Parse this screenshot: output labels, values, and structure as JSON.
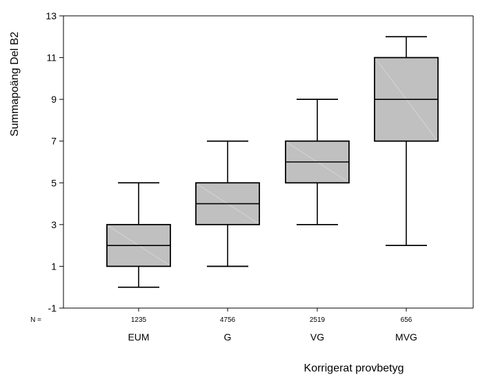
{
  "chart_data": {
    "type": "box",
    "title": "",
    "xlabel": "Korrigerat provbetyg",
    "ylabel": "Summapoäng Del B2",
    "ylim": [
      -1,
      13
    ],
    "yticks": [
      -1,
      1,
      3,
      5,
      7,
      9,
      11,
      13
    ],
    "grid": false,
    "n_prefix": "N =",
    "categories": [
      "EUM",
      "G",
      "VG",
      "MVG"
    ],
    "n": [
      "1235",
      "4756",
      "2519",
      "656"
    ],
    "box_fill": "#c0c0c0",
    "boxes": [
      {
        "category": "EUM",
        "min": 0,
        "q1": 1,
        "median": 2,
        "q3": 3,
        "max": 5
      },
      {
        "category": "G",
        "min": 1,
        "q1": 3,
        "median": 4,
        "q3": 5,
        "max": 7
      },
      {
        "category": "VG",
        "min": 3,
        "q1": 5,
        "median": 6,
        "q3": 7,
        "max": 9
      },
      {
        "category": "MVG",
        "min": 2,
        "q1": 7,
        "median": 9,
        "q3": 11,
        "max": 12
      }
    ]
  }
}
